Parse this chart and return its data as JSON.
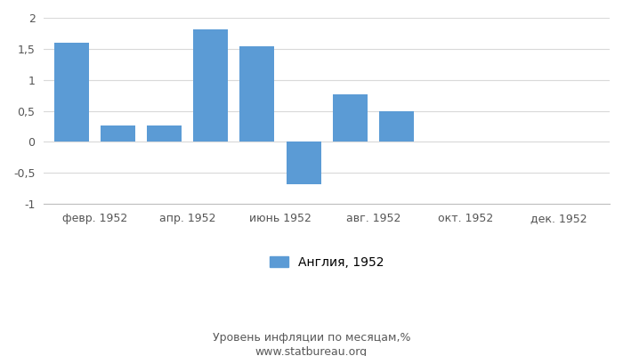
{
  "bar_values": [
    1.6,
    0.27,
    0.27,
    1.82,
    1.54,
    -0.68,
    0.77,
    0.5,
    0.0,
    0.0,
    0.0,
    0.0
  ],
  "bar_color": "#5b9bd5",
  "ylim": [
    -1.0,
    2.0
  ],
  "yticks": [
    -1.0,
    -0.5,
    0.0,
    0.5,
    1.0,
    1.5,
    2.0
  ],
  "ytick_labels": [
    "-1",
    "-0,5",
    "0",
    "0,5",
    "1",
    "1,5",
    "2"
  ],
  "tick_positions": [
    0.5,
    2.5,
    4.5,
    6.5,
    8.5,
    10.5
  ],
  "tick_labels": [
    "февр. 1952",
    "апр. 1952",
    "июнь 1952",
    "авг. 1952",
    "окт. 1952",
    "дек. 1952"
  ],
  "legend_label": "Англия, 1952",
  "bottom_label": "Уровень инфляции по месяцам,%",
  "bottom_url": "www.statbureau.org",
  "bottom_label_color": "#595959",
  "grid_color": "#d9d9d9",
  "spine_color": "#bfbfbf"
}
